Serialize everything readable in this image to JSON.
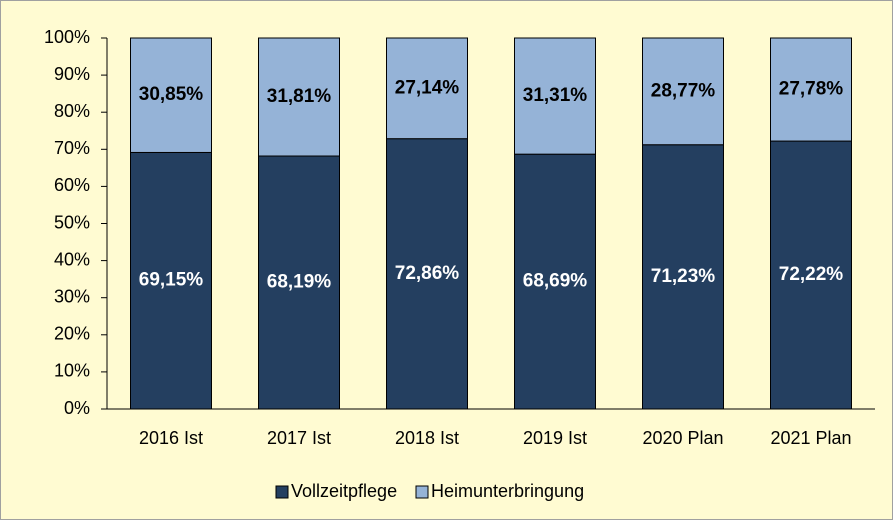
{
  "chart_data": {
    "type": "stacked_bar",
    "categories": [
      "2016 Ist",
      "2017 Ist",
      "2018 Ist",
      "2019 Ist",
      "2020 Plan",
      "2021 Plan"
    ],
    "series": [
      {
        "name": "Vollzeitpflege",
        "color": "#243f60",
        "label_color": "#ffffff",
        "values": [
          69.15,
          68.19,
          72.86,
          68.69,
          71.23,
          72.22
        ],
        "value_labels": [
          "69,15%",
          "68,19%",
          "72,86%",
          "68,69%",
          "71,23%",
          "72,22%"
        ]
      },
      {
        "name": "Heimunterbringung",
        "color": "#95b3d7",
        "label_color": "#000000",
        "values": [
          30.85,
          31.81,
          27.14,
          31.31,
          28.77,
          27.78
        ],
        "value_labels": [
          "30,85%",
          "31,81%",
          "27,14%",
          "31,31%",
          "28,77%",
          "27,78%"
        ]
      }
    ],
    "ylim": [
      0,
      100
    ],
    "yticks": [
      {
        "value": 0,
        "label": "0%"
      },
      {
        "value": 10,
        "label": "10%"
      },
      {
        "value": 20,
        "label": "20%"
      },
      {
        "value": 30,
        "label": "30%"
      },
      {
        "value": 40,
        "label": "40%"
      },
      {
        "value": 50,
        "label": "50%"
      },
      {
        "value": 60,
        "label": "60%"
      },
      {
        "value": 70,
        "label": "70%"
      },
      {
        "value": 80,
        "label": "80%"
      },
      {
        "value": 90,
        "label": "90%"
      },
      {
        "value": 100,
        "label": "100%"
      }
    ],
    "legend": "bottom"
  }
}
